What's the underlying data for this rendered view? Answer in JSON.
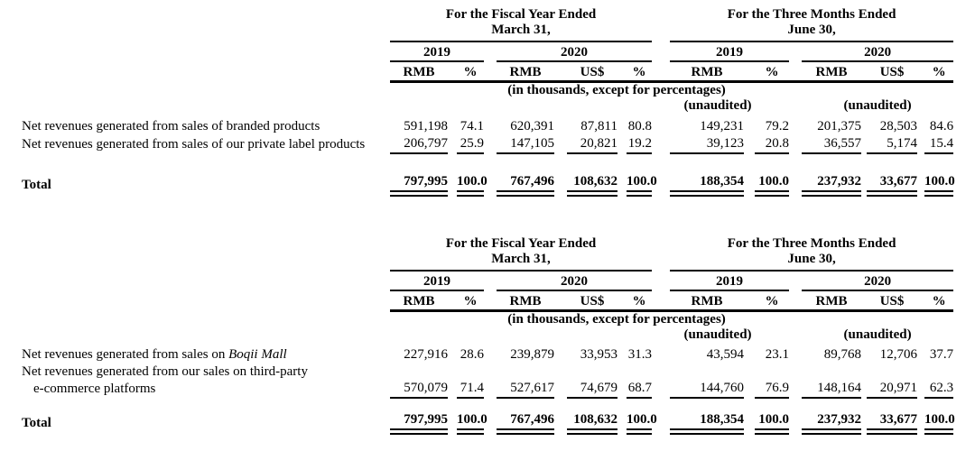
{
  "tables": [
    {
      "header": {
        "fiscal": {
          "line1": "For the Fiscal Year Ended",
          "line2": "March 31,"
        },
        "quarter": {
          "line1": "For the Three Months Ended",
          "line2": "June 30,"
        },
        "years": {
          "fy2019": "2019",
          "fy2020": "2020",
          "q2019": "2019",
          "q2020": "2020"
        },
        "columns": [
          "RMB",
          "%",
          "RMB",
          "US$",
          "%",
          "RMB",
          "%",
          "RMB",
          "US$",
          "%"
        ],
        "note": "(in thousands, except for percentages)",
        "unaudited_q2019": "(unaudited)",
        "unaudited_q2020": "(unaudited)"
      },
      "rows": [
        {
          "label": "Net revenues generated from sales of branded products",
          "values": [
            "591,198",
            "74.1",
            "620,391",
            "87,811",
            "80.8",
            "149,231",
            "79.2",
            "201,375",
            "28,503",
            "84.6"
          ]
        },
        {
          "label": "Net revenues generated from sales of our private label products",
          "values": [
            "206,797",
            "25.9",
            "147,105",
            "20,821",
            "19.2",
            "39,123",
            "20.8",
            "36,557",
            "5,174",
            "15.4"
          ]
        }
      ],
      "total": {
        "label": "Total",
        "values": [
          "797,995",
          "100.0",
          "767,496",
          "108,632",
          "100.0",
          "188,354",
          "100.0",
          "237,932",
          "33,677",
          "100.0"
        ]
      }
    },
    {
      "header": {
        "fiscal": {
          "line1": "For the Fiscal Year Ended",
          "line2": "March 31,"
        },
        "quarter": {
          "line1": "For the Three Months Ended",
          "line2": "June 30,"
        },
        "years": {
          "fy2019": "2019",
          "fy2020": "2020",
          "q2019": "2019",
          "q2020": "2020"
        },
        "columns": [
          "RMB",
          "%",
          "RMB",
          "US$",
          "%",
          "RMB",
          "%",
          "RMB",
          "US$",
          "%"
        ],
        "note": "(in thousands, except for percentages)",
        "unaudited_q2019": "(unaudited)",
        "unaudited_q2020": "(unaudited)"
      },
      "rows": [
        {
          "label_prefix": "Net revenues generated from sales on ",
          "label_italic": "Boqii Mall",
          "values": [
            "227,916",
            "28.6",
            "239,879",
            "33,953",
            "31.3",
            "43,594",
            "23.1",
            "89,768",
            "12,706",
            "37.7"
          ]
        },
        {
          "label_line1": "Net revenues generated from our sales on third-party",
          "label_line2": "e-commerce platforms",
          "values": [
            "570,079",
            "71.4",
            "527,617",
            "74,679",
            "68.7",
            "144,760",
            "76.9",
            "148,164",
            "20,971",
            "62.3"
          ]
        }
      ],
      "total": {
        "label": "Total",
        "values": [
          "797,995",
          "100.0",
          "767,496",
          "108,632",
          "100.0",
          "188,354",
          "100.0",
          "237,932",
          "33,677",
          "100.0"
        ]
      }
    }
  ]
}
